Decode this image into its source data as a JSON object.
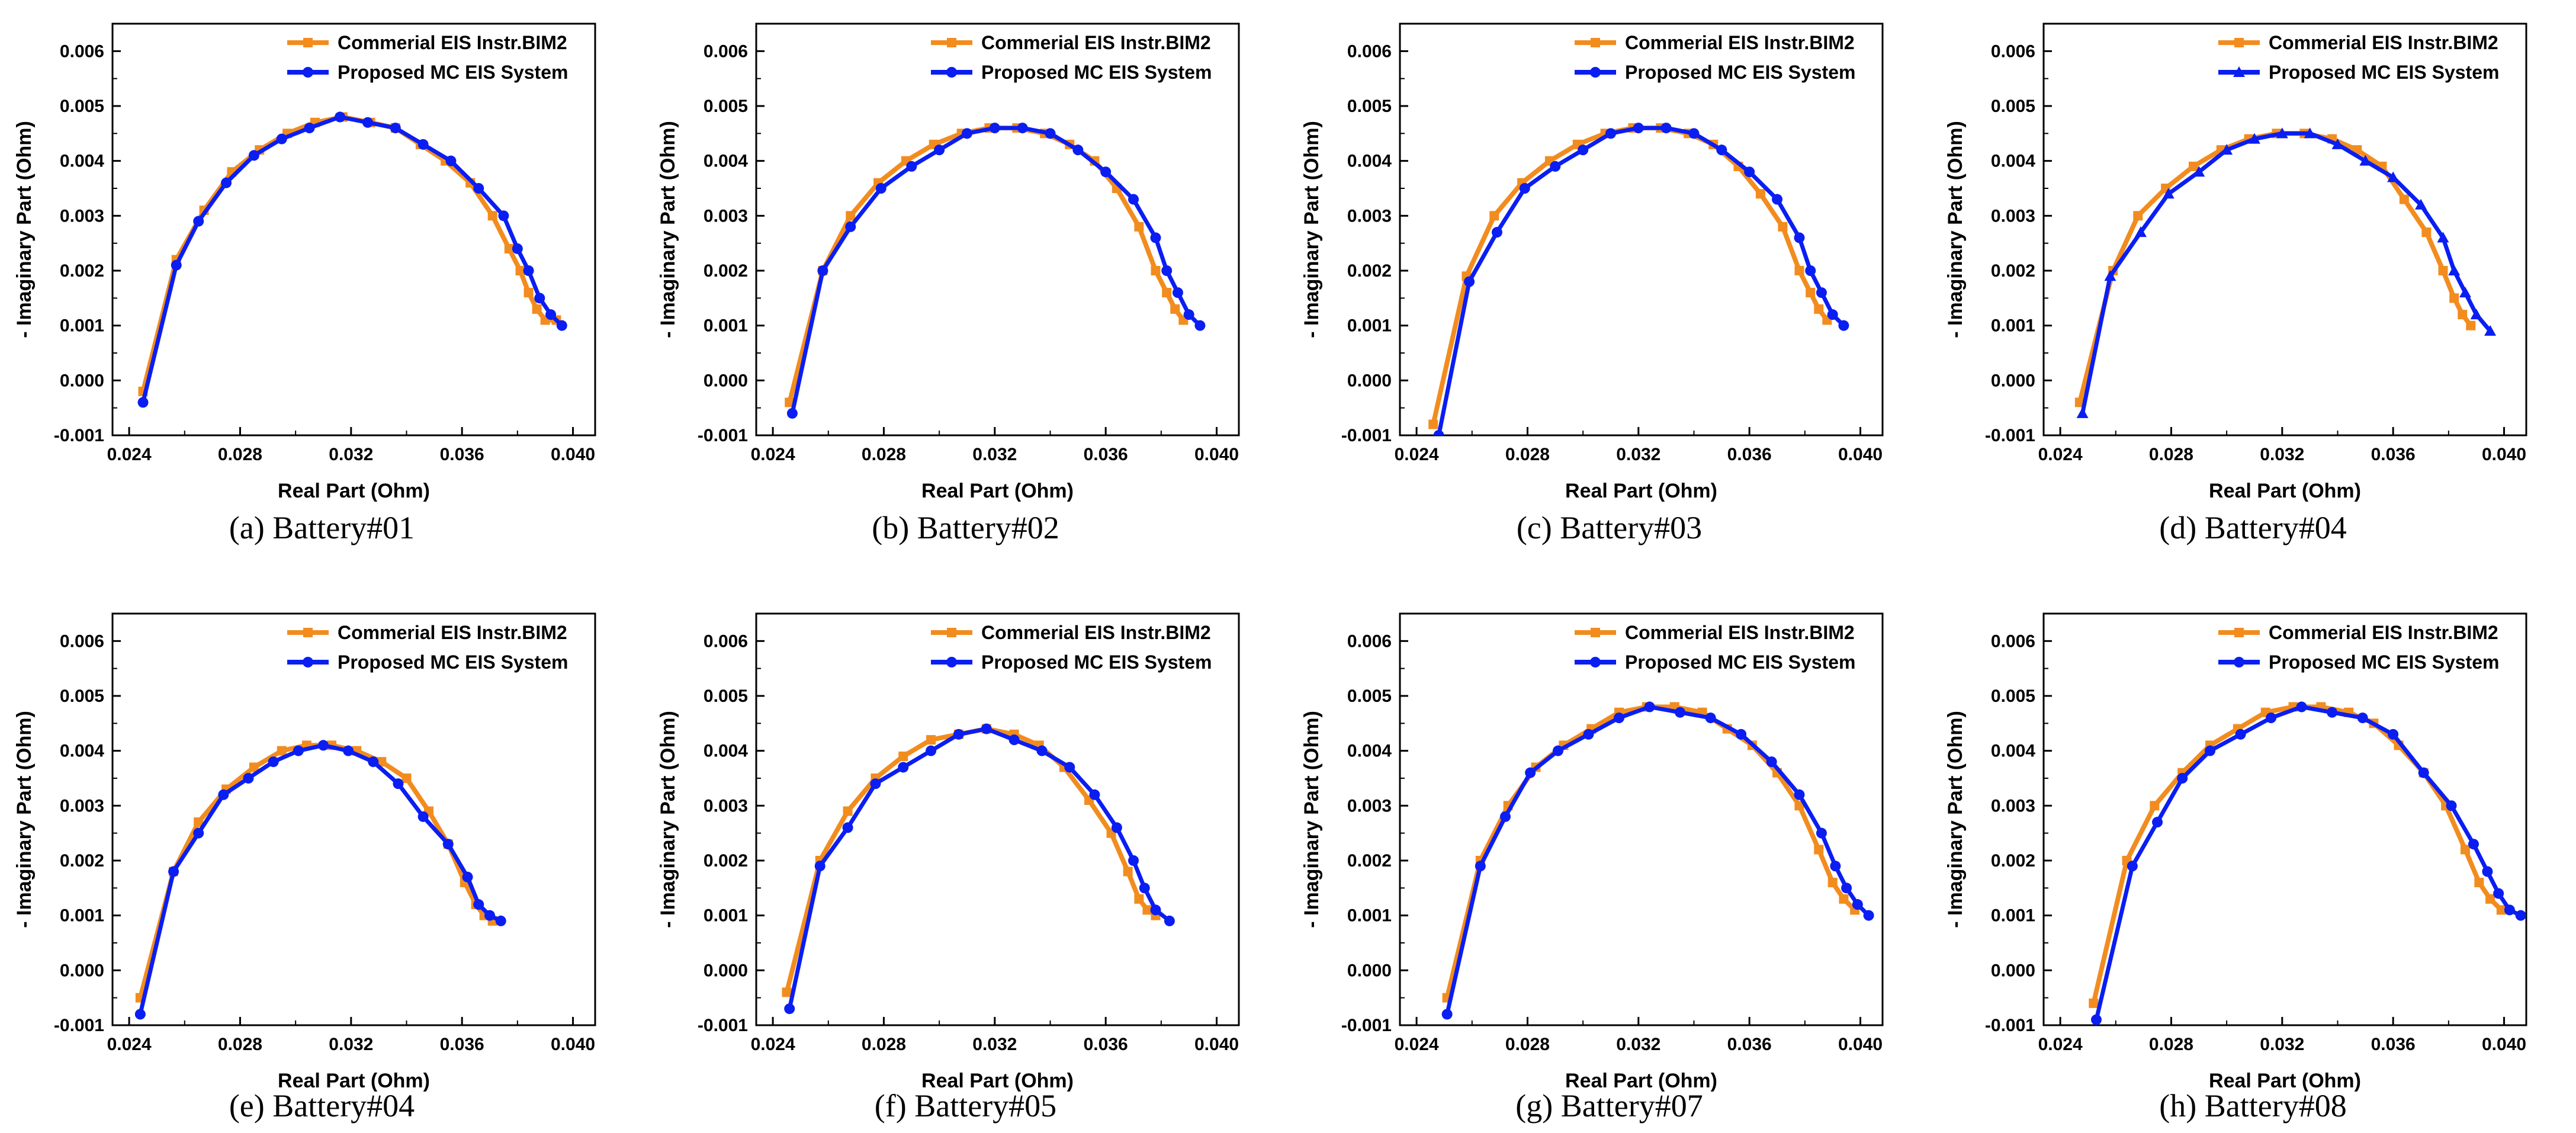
{
  "figure": {
    "legend": [
      "Commerial EIS Instr.BIM2",
      "Proposed MC EIS System"
    ],
    "colors": {
      "commercial": "#F28C1E",
      "proposed": "#0A1EF2",
      "axis": "#000000"
    }
  },
  "chart_data": [
    {
      "type": "line",
      "caption": "(a) Battery#01",
      "xlabel": "Real Part (Ohm)",
      "ylabel": "- Imaginary Part (Ohm)",
      "xlim": [
        0.0234,
        0.0408
      ],
      "ylim": [
        -0.001,
        0.0065
      ],
      "xticks": [
        "0.024",
        "0.028",
        "0.032",
        "0.036",
        "0.040"
      ],
      "yticks": [
        "-0.001",
        "0.000",
        "0.001",
        "0.002",
        "0.003",
        "0.004",
        "0.005",
        "0.006"
      ],
      "series": [
        {
          "name": "Commerial EIS Instr.BIM2",
          "marker": "square",
          "x": [
            0.0245,
            0.0257,
            0.0267,
            0.0277,
            0.0287,
            0.0297,
            0.0307,
            0.0317,
            0.0327,
            0.0336,
            0.0345,
            0.0354,
            0.0363,
            0.0371,
            0.0377,
            0.0381,
            0.0384,
            0.0387,
            0.039,
            0.0394
          ],
          "y": [
            -0.0002,
            0.0022,
            0.0031,
            0.0038,
            0.0042,
            0.0045,
            0.0047,
            0.0048,
            0.0047,
            0.0046,
            0.0043,
            0.004,
            0.0036,
            0.003,
            0.0024,
            0.002,
            0.0016,
            0.0013,
            0.0011,
            0.0011
          ]
        },
        {
          "name": "Proposed MC EIS System",
          "marker": "circle",
          "x": [
            0.0245,
            0.0257,
            0.0265,
            0.0275,
            0.0285,
            0.0295,
            0.0305,
            0.0316,
            0.0326,
            0.0336,
            0.0346,
            0.0356,
            0.0366,
            0.0375,
            0.038,
            0.0384,
            0.0388,
            0.0392,
            0.0396
          ],
          "y": [
            -0.0004,
            0.0021,
            0.0029,
            0.0036,
            0.0041,
            0.0044,
            0.0046,
            0.0048,
            0.0047,
            0.0046,
            0.0043,
            0.004,
            0.0035,
            0.003,
            0.0024,
            0.002,
            0.0015,
            0.0012,
            0.001
          ]
        }
      ]
    },
    {
      "type": "line",
      "caption": "(b) Battery#02",
      "xlabel": "Real Part (Ohm)",
      "ylabel": "- Imaginary Part (Ohm)",
      "xlim": [
        0.0234,
        0.0408
      ],
      "ylim": [
        -0.001,
        0.0065
      ],
      "xticks": [
        "0.024",
        "0.028",
        "0.032",
        "0.036",
        "0.040"
      ],
      "yticks": [
        "-0.001",
        "0.000",
        "0.001",
        "0.002",
        "0.003",
        "0.004",
        "0.005",
        "0.006"
      ],
      "series": [
        {
          "name": "Commerial EIS Instr.BIM2",
          "marker": "square",
          "x": [
            0.0246,
            0.0258,
            0.0268,
            0.0278,
            0.0288,
            0.0298,
            0.0308,
            0.0318,
            0.0328,
            0.0338,
            0.0347,
            0.0356,
            0.0364,
            0.0372,
            0.0378,
            0.0382,
            0.0385,
            0.0388
          ],
          "y": [
            -0.0004,
            0.002,
            0.003,
            0.0036,
            0.004,
            0.0043,
            0.0045,
            0.0046,
            0.0046,
            0.0045,
            0.0043,
            0.004,
            0.0035,
            0.0028,
            0.002,
            0.0016,
            0.0013,
            0.0011
          ]
        },
        {
          "name": "Proposed MC EIS System",
          "marker": "circle",
          "x": [
            0.0247,
            0.0258,
            0.0268,
            0.0279,
            0.029,
            0.03,
            0.031,
            0.032,
            0.033,
            0.034,
            0.035,
            0.036,
            0.037,
            0.0378,
            0.0382,
            0.0386,
            0.039,
            0.0394
          ],
          "y": [
            -0.0006,
            0.002,
            0.0028,
            0.0035,
            0.0039,
            0.0042,
            0.0045,
            0.0046,
            0.0046,
            0.0045,
            0.0042,
            0.0038,
            0.0033,
            0.0026,
            0.002,
            0.0016,
            0.0012,
            0.001
          ]
        }
      ]
    },
    {
      "type": "line",
      "caption": "(c) Battery#03",
      "xlabel": "Real Part (Ohm)",
      "ylabel": "- Imaginary Part (Ohm)",
      "xlim": [
        0.0234,
        0.0408
      ],
      "ylim": [
        -0.001,
        0.0065
      ],
      "xticks": [
        "0.024",
        "0.028",
        "0.032",
        "0.036",
        "0.040"
      ],
      "yticks": [
        "-0.001",
        "0.000",
        "0.001",
        "0.002",
        "0.003",
        "0.004",
        "0.005",
        "0.006"
      ],
      "series": [
        {
          "name": "Commerial EIS Instr.BIM2",
          "marker": "square",
          "x": [
            0.0246,
            0.0258,
            0.0268,
            0.0278,
            0.0288,
            0.0298,
            0.0308,
            0.0318,
            0.0328,
            0.0338,
            0.0347,
            0.0356,
            0.0364,
            0.0372,
            0.0378,
            0.0382,
            0.0385,
            0.0388
          ],
          "y": [
            -0.0008,
            0.0019,
            0.003,
            0.0036,
            0.004,
            0.0043,
            0.0045,
            0.0046,
            0.0046,
            0.0045,
            0.0043,
            0.0039,
            0.0034,
            0.0028,
            0.002,
            0.0016,
            0.0013,
            0.0011
          ]
        },
        {
          "name": "Proposed MC EIS System",
          "marker": "circle",
          "x": [
            0.0248,
            0.0259,
            0.0269,
            0.0279,
            0.029,
            0.03,
            0.031,
            0.032,
            0.033,
            0.034,
            0.035,
            0.036,
            0.037,
            0.0378,
            0.0382,
            0.0386,
            0.039,
            0.0394
          ],
          "y": [
            -0.001,
            0.0018,
            0.0027,
            0.0035,
            0.0039,
            0.0042,
            0.0045,
            0.0046,
            0.0046,
            0.0045,
            0.0042,
            0.0038,
            0.0033,
            0.0026,
            0.002,
            0.0016,
            0.0012,
            0.001
          ]
        }
      ]
    },
    {
      "type": "line",
      "caption": "(d) Battery#04",
      "xlabel": "Real Part (Ohm)",
      "ylabel": "- Imaginary Part (Ohm)",
      "xlim": [
        0.0234,
        0.0408
      ],
      "ylim": [
        -0.001,
        0.0065
      ],
      "xticks": [
        "0.024",
        "0.028",
        "0.032",
        "0.036",
        "0.040"
      ],
      "yticks": [
        "-0.001",
        "0.000",
        "0.001",
        "0.002",
        "0.003",
        "0.004",
        "0.005",
        "0.006"
      ],
      "series": [
        {
          "name": "Commerial EIS Instr.BIM2",
          "marker": "square",
          "x": [
            0.0247,
            0.0259,
            0.0268,
            0.0278,
            0.0288,
            0.0298,
            0.0308,
            0.0318,
            0.0328,
            0.0338,
            0.0347,
            0.0356,
            0.0364,
            0.0372,
            0.0378,
            0.0382,
            0.0385,
            0.0388
          ],
          "y": [
            -0.0004,
            0.002,
            0.003,
            0.0035,
            0.0039,
            0.0042,
            0.0044,
            0.0045,
            0.0045,
            0.0044,
            0.0042,
            0.0039,
            0.0033,
            0.0027,
            0.002,
            0.0015,
            0.0012,
            0.001
          ]
        },
        {
          "name": "Proposed MC EIS System",
          "marker": "triangle",
          "x": [
            0.0248,
            0.0258,
            0.0269,
            0.0279,
            0.029,
            0.03,
            0.031,
            0.032,
            0.033,
            0.034,
            0.035,
            0.036,
            0.037,
            0.0378,
            0.0382,
            0.0386,
            0.039,
            0.0395
          ],
          "y": [
            -0.0006,
            0.0019,
            0.0027,
            0.0034,
            0.0038,
            0.0042,
            0.0044,
            0.0045,
            0.0045,
            0.0043,
            0.004,
            0.0037,
            0.0032,
            0.0026,
            0.002,
            0.0016,
            0.0012,
            0.0009
          ]
        }
      ]
    },
    {
      "type": "line",
      "caption": "(e) Battery#04",
      "xlabel": "Real Part (Ohm)",
      "ylabel": "- Imaginary Part (Ohm)",
      "xlim": [
        0.0234,
        0.0408
      ],
      "ylim": [
        -0.001,
        0.0065
      ],
      "xticks": [
        "0.024",
        "0.028",
        "0.032",
        "0.036",
        "0.040"
      ],
      "yticks": [
        "-0.001",
        "0.000",
        "0.001",
        "0.002",
        "0.003",
        "0.004",
        "0.005",
        "0.006"
      ],
      "series": [
        {
          "name": "Commerial EIS Instr.BIM2",
          "marker": "square",
          "x": [
            0.0244,
            0.0256,
            0.0265,
            0.0275,
            0.0285,
            0.0295,
            0.0304,
            0.0313,
            0.0322,
            0.0331,
            0.034,
            0.0348,
            0.0355,
            0.0361,
            0.0365,
            0.0368,
            0.0371
          ],
          "y": [
            -0.0005,
            0.0018,
            0.0027,
            0.0033,
            0.0037,
            0.004,
            0.0041,
            0.0041,
            0.004,
            0.0038,
            0.0035,
            0.0029,
            0.0023,
            0.0016,
            0.0012,
            0.001,
            0.0009
          ]
        },
        {
          "name": "Proposed MC EIS System",
          "marker": "circle",
          "x": [
            0.0244,
            0.0256,
            0.0265,
            0.0274,
            0.0283,
            0.0292,
            0.0301,
            0.031,
            0.0319,
            0.0328,
            0.0337,
            0.0346,
            0.0355,
            0.0362,
            0.0366,
            0.037,
            0.0374
          ],
          "y": [
            -0.0008,
            0.0018,
            0.0025,
            0.0032,
            0.0035,
            0.0038,
            0.004,
            0.0041,
            0.004,
            0.0038,
            0.0034,
            0.0028,
            0.0023,
            0.0017,
            0.0012,
            0.001,
            0.0009
          ]
        }
      ]
    },
    {
      "type": "line",
      "caption": "(f) Battery#05",
      "xlabel": "Real Part (Ohm)",
      "ylabel": "- Imaginary Part (Ohm)",
      "xlim": [
        0.0234,
        0.0408
      ],
      "ylim": [
        -0.001,
        0.0065
      ],
      "xticks": [
        "0.024",
        "0.028",
        "0.032",
        "0.036",
        "0.040"
      ],
      "yticks": [
        "-0.001",
        "0.000",
        "0.001",
        "0.002",
        "0.003",
        "0.004",
        "0.005",
        "0.006"
      ],
      "series": [
        {
          "name": "Commerial EIS Instr.BIM2",
          "marker": "square",
          "x": [
            0.0245,
            0.0257,
            0.0267,
            0.0277,
            0.0287,
            0.0297,
            0.0307,
            0.0317,
            0.0327,
            0.0336,
            0.0345,
            0.0354,
            0.0362,
            0.0368,
            0.0372,
            0.0375,
            0.0378
          ],
          "y": [
            -0.0004,
            0.002,
            0.0029,
            0.0035,
            0.0039,
            0.0042,
            0.0043,
            0.0044,
            0.0043,
            0.0041,
            0.0037,
            0.0031,
            0.0025,
            0.0018,
            0.0013,
            0.0011,
            0.001
          ]
        },
        {
          "name": "Proposed MC EIS System",
          "marker": "circle",
          "x": [
            0.0246,
            0.0257,
            0.0267,
            0.0277,
            0.0287,
            0.0297,
            0.0307,
            0.0317,
            0.0327,
            0.0337,
            0.0347,
            0.0356,
            0.0364,
            0.037,
            0.0374,
            0.0378,
            0.0383
          ],
          "y": [
            -0.0007,
            0.0019,
            0.0026,
            0.0034,
            0.0037,
            0.004,
            0.0043,
            0.0044,
            0.0042,
            0.004,
            0.0037,
            0.0032,
            0.0026,
            0.002,
            0.0015,
            0.0011,
            0.0009
          ]
        }
      ]
    },
    {
      "type": "line",
      "caption": "(g) Battery#07",
      "xlabel": "Real Part (Ohm)",
      "ylabel": "- Imaginary Part (Ohm)",
      "xlim": [
        0.0234,
        0.0408
      ],
      "ylim": [
        -0.001,
        0.0065
      ],
      "xticks": [
        "0.024",
        "0.028",
        "0.032",
        "0.036",
        "0.040"
      ],
      "yticks": [
        "-0.001",
        "0.000",
        "0.001",
        "0.002",
        "0.003",
        "0.004",
        "0.005",
        "0.006"
      ],
      "series": [
        {
          "name": "Commerial EIS Instr.BIM2",
          "marker": "square",
          "x": [
            0.0251,
            0.0263,
            0.0273,
            0.0283,
            0.0293,
            0.0303,
            0.0313,
            0.0323,
            0.0333,
            0.0343,
            0.0352,
            0.0361,
            0.037,
            0.0378,
            0.0385,
            0.039,
            0.0394,
            0.0398
          ],
          "y": [
            -0.0005,
            0.002,
            0.003,
            0.0037,
            0.0041,
            0.0044,
            0.0047,
            0.0048,
            0.0048,
            0.0047,
            0.0044,
            0.0041,
            0.0036,
            0.003,
            0.0022,
            0.0016,
            0.0013,
            0.0011
          ]
        },
        {
          "name": "Proposed MC EIS System",
          "marker": "circle",
          "x": [
            0.0251,
            0.0263,
            0.0272,
            0.0281,
            0.0291,
            0.0302,
            0.0313,
            0.0324,
            0.0335,
            0.0346,
            0.0357,
            0.0368,
            0.0378,
            0.0386,
            0.0391,
            0.0395,
            0.0399,
            0.0403
          ],
          "y": [
            -0.0008,
            0.0019,
            0.0028,
            0.0036,
            0.004,
            0.0043,
            0.0046,
            0.0048,
            0.0047,
            0.0046,
            0.0043,
            0.0038,
            0.0032,
            0.0025,
            0.0019,
            0.0015,
            0.0012,
            0.001
          ]
        }
      ]
    },
    {
      "type": "line",
      "caption": "(h) Battery#08",
      "xlabel": "Real Part (Ohm)",
      "ylabel": "- Imaginary Part (Ohm)",
      "xlim": [
        0.0234,
        0.0408
      ],
      "ylim": [
        -0.001,
        0.0065
      ],
      "xticks": [
        "0.024",
        "0.028",
        "0.032",
        "0.036",
        "0.040"
      ],
      "yticks": [
        "-0.001",
        "0.000",
        "0.001",
        "0.002",
        "0.003",
        "0.004",
        "0.005",
        "0.006"
      ],
      "series": [
        {
          "name": "Commerial EIS Instr.BIM2",
          "marker": "square",
          "x": [
            0.0252,
            0.0264,
            0.0274,
            0.0284,
            0.0294,
            0.0304,
            0.0314,
            0.0324,
            0.0334,
            0.0344,
            0.0353,
            0.0362,
            0.0371,
            0.0379,
            0.0386,
            0.0391,
            0.0395,
            0.0399
          ],
          "y": [
            -0.0006,
            0.002,
            0.003,
            0.0036,
            0.0041,
            0.0044,
            0.0047,
            0.0048,
            0.0048,
            0.0047,
            0.0045,
            0.0041,
            0.0036,
            0.003,
            0.0022,
            0.0016,
            0.0013,
            0.0011
          ]
        },
        {
          "name": "Proposed MC EIS System",
          "marker": "circle",
          "x": [
            0.0253,
            0.0266,
            0.0275,
            0.0284,
            0.0294,
            0.0305,
            0.0316,
            0.0327,
            0.0338,
            0.0349,
            0.036,
            0.0371,
            0.0381,
            0.0389,
            0.0394,
            0.0398,
            0.0402,
            0.0406
          ],
          "y": [
            -0.0009,
            0.0019,
            0.0027,
            0.0035,
            0.004,
            0.0043,
            0.0046,
            0.0048,
            0.0047,
            0.0046,
            0.0043,
            0.0036,
            0.003,
            0.0023,
            0.0018,
            0.0014,
            0.0011,
            0.001
          ]
        }
      ]
    }
  ]
}
